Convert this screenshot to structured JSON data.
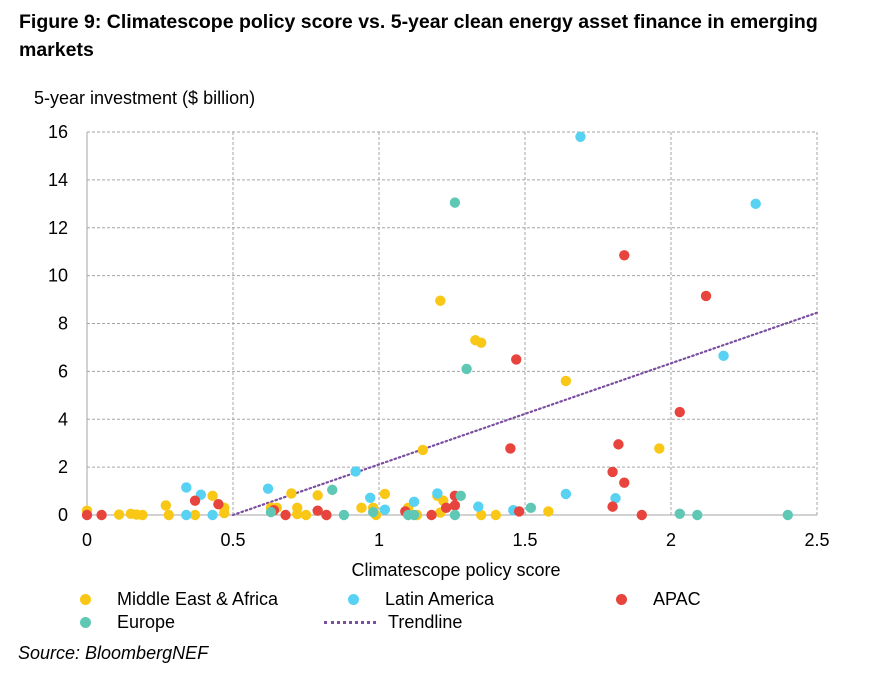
{
  "figure": {
    "title": "Figure 9: Climatescope policy score vs. 5-year clean energy asset finance in emerging markets",
    "source": "Source: BloombergNEF"
  },
  "chart_data": {
    "type": "scatter",
    "title": "Figure 9: Climatescope policy score vs. 5-year clean energy asset finance in emerging markets",
    "xlabel": "Climatescope policy score",
    "ylabel": "5-year investment ($ billion)",
    "xlim": [
      0,
      2.5
    ],
    "ylim": [
      0,
      16
    ],
    "xticks": [
      "0",
      "0.5",
      "1",
      "1.5",
      "2",
      "2.5"
    ],
    "yticks": [
      "0",
      "2",
      "4",
      "6",
      "8",
      "10",
      "12",
      "14",
      "16"
    ],
    "grid": true,
    "series": [
      {
        "name": "Middle East & Africa",
        "color": "#f9c716",
        "points": [
          [
            0.0,
            0.18
          ],
          [
            0.11,
            0.02
          ],
          [
            0.15,
            0.05
          ],
          [
            0.17,
            0.02
          ],
          [
            0.19,
            0.0
          ],
          [
            0.27,
            0.4
          ],
          [
            0.28,
            0.0
          ],
          [
            0.37,
            0.0
          ],
          [
            0.43,
            0.8
          ],
          [
            0.47,
            0.08
          ],
          [
            0.47,
            0.3
          ],
          [
            0.63,
            0.3
          ],
          [
            0.65,
            0.3
          ],
          [
            0.7,
            0.9
          ],
          [
            0.72,
            0.3
          ],
          [
            0.72,
            0.04
          ],
          [
            0.75,
            0.0
          ],
          [
            0.79,
            0.82
          ],
          [
            0.82,
            0.0
          ],
          [
            0.94,
            0.3
          ],
          [
            0.98,
            0.3
          ],
          [
            0.99,
            0.0
          ],
          [
            1.02,
            0.88
          ],
          [
            1.1,
            0.3
          ],
          [
            1.13,
            0.0
          ],
          [
            1.15,
            2.72
          ],
          [
            1.2,
            0.8
          ],
          [
            1.21,
            0.1
          ],
          [
            1.21,
            8.95
          ],
          [
            1.22,
            0.6
          ],
          [
            1.33,
            7.3
          ],
          [
            1.35,
            7.2
          ],
          [
            1.35,
            0.0
          ],
          [
            1.4,
            0.0
          ],
          [
            1.58,
            0.15
          ],
          [
            1.64,
            5.6
          ],
          [
            1.96,
            2.78
          ]
        ]
      },
      {
        "name": "Latin America",
        "color": "#58d2f2",
        "points": [
          [
            0.34,
            1.15
          ],
          [
            0.34,
            0.0
          ],
          [
            0.39,
            0.85
          ],
          [
            0.43,
            0.0
          ],
          [
            0.62,
            1.1
          ],
          [
            0.92,
            1.82
          ],
          [
            0.97,
            0.72
          ],
          [
            1.02,
            0.22
          ],
          [
            1.12,
            0.55
          ],
          [
            1.2,
            0.9
          ],
          [
            1.34,
            0.35
          ],
          [
            1.46,
            0.2
          ],
          [
            1.64,
            0.88
          ],
          [
            1.69,
            15.8
          ],
          [
            1.81,
            0.7
          ],
          [
            2.18,
            6.65
          ],
          [
            2.29,
            13.0
          ]
        ]
      },
      {
        "name": "APAC",
        "color": "#e8443e",
        "points": [
          [
            0.0,
            0.0
          ],
          [
            0.05,
            0.0
          ],
          [
            0.37,
            0.6
          ],
          [
            0.45,
            0.45
          ],
          [
            0.64,
            0.2
          ],
          [
            0.68,
            0.0
          ],
          [
            0.79,
            0.18
          ],
          [
            0.82,
            0.0
          ],
          [
            1.09,
            0.15
          ],
          [
            1.18,
            0.0
          ],
          [
            1.23,
            0.3
          ],
          [
            1.26,
            0.4
          ],
          [
            1.26,
            0.8
          ],
          [
            1.45,
            2.78
          ],
          [
            1.47,
            6.5
          ],
          [
            1.48,
            0.15
          ],
          [
            1.8,
            1.8
          ],
          [
            1.8,
            0.35
          ],
          [
            1.82,
            2.95
          ],
          [
            1.84,
            10.85
          ],
          [
            1.84,
            1.35
          ],
          [
            1.9,
            0.0
          ],
          [
            2.03,
            4.3
          ],
          [
            2.12,
            9.15
          ]
        ]
      },
      {
        "name": "Europe",
        "color": "#5fc8b5",
        "points": [
          [
            0.63,
            0.12
          ],
          [
            0.84,
            1.05
          ],
          [
            0.88,
            0.0
          ],
          [
            0.98,
            0.12
          ],
          [
            1.1,
            0.0
          ],
          [
            1.12,
            0.0
          ],
          [
            1.26,
            0.0
          ],
          [
            1.26,
            13.05
          ],
          [
            1.28,
            0.8
          ],
          [
            1.3,
            6.1
          ],
          [
            1.52,
            0.3
          ],
          [
            2.03,
            0.05
          ],
          [
            2.09,
            0.0
          ],
          [
            2.4,
            0.0
          ]
        ]
      }
    ],
    "trendline": {
      "name": "Trendline",
      "color": "#7b4fa0",
      "points": [
        [
          0.5,
          0.0
        ],
        [
          2.5,
          8.45
        ]
      ]
    },
    "legend": {
      "placement": "bottom",
      "items": [
        "Middle East & Africa",
        "Latin America",
        "APAC",
        "Europe",
        "Trendline"
      ]
    }
  }
}
